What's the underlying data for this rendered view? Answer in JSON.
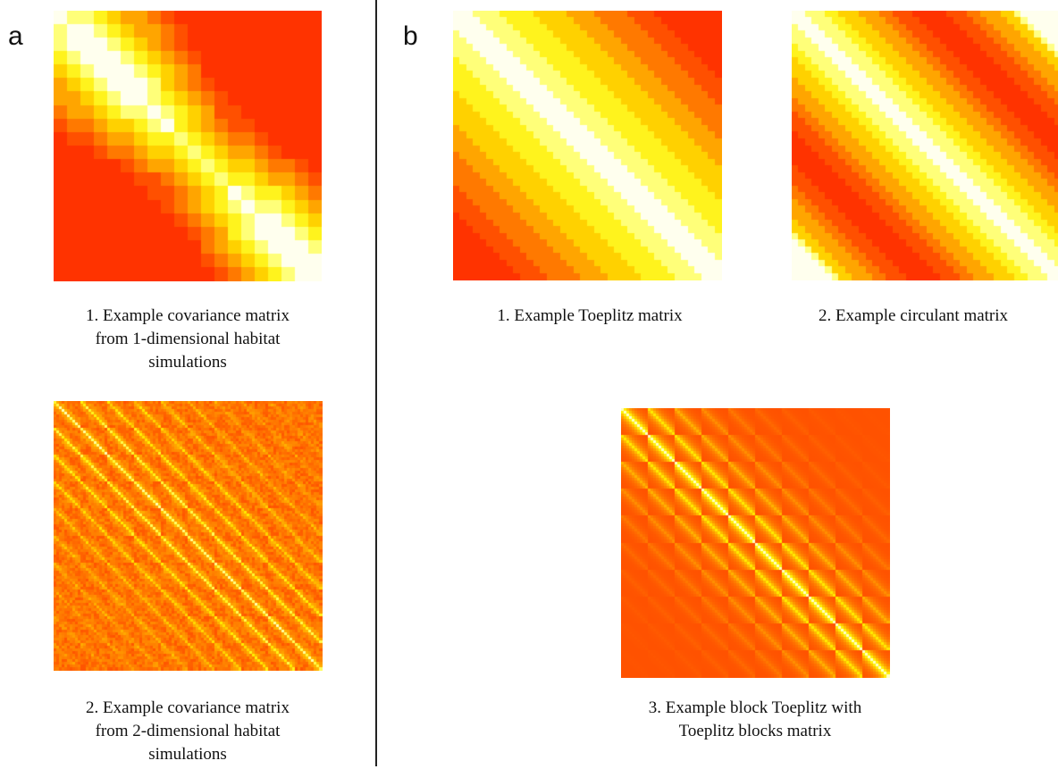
{
  "panels": {
    "a": {
      "letter": "a",
      "items": [
        {
          "caption": "1. Example covariance matrix\nfrom 1-dimensional habitat\nsimulations",
          "kind": "cov1d"
        },
        {
          "caption": "2. Example covariance matrix\nfrom 2-dimensional habitat\nsimulations",
          "kind": "cov2d"
        }
      ]
    },
    "b": {
      "letter": "b",
      "items": [
        {
          "caption": "1. Example Toeplitz matrix",
          "kind": "toeplitz"
        },
        {
          "caption": "2. Example circulant matrix",
          "kind": "circulant"
        },
        {
          "caption": "3. Example block Toeplitz with\nToeplitz blocks matrix",
          "kind": "bttb"
        }
      ]
    }
  },
  "colormap": {
    "name": "heat",
    "stops": [
      "#ff3300",
      "#ff5500",
      "#ff8800",
      "#ffbb00",
      "#ffee00",
      "#ffff66",
      "#ffffee"
    ]
  }
}
